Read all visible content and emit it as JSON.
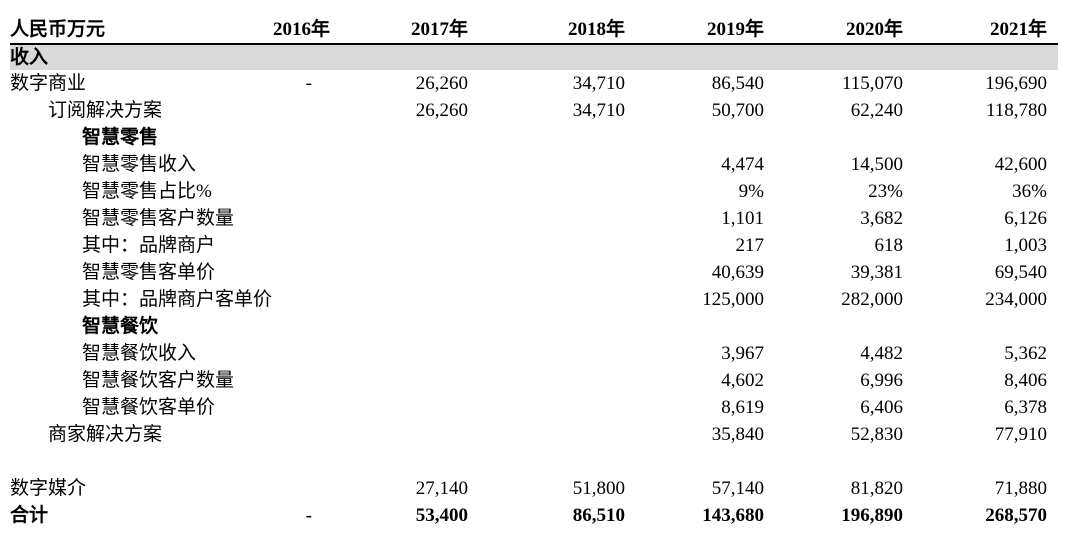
{
  "table": {
    "unit_label": "人民币万元",
    "columns": [
      "2016年",
      "2017年",
      "2018年",
      "2019年",
      "2020年",
      "2021年"
    ],
    "section_header": "收入",
    "rows": [
      {
        "label": "数字商业",
        "indent": 0,
        "bold": false,
        "spacer": false,
        "values": [
          "-",
          "26,260",
          "34,710",
          "86,540",
          "115,070",
          "196,690"
        ]
      },
      {
        "label": "订阅解决方案",
        "indent": 1,
        "bold": false,
        "spacer": false,
        "values": [
          "",
          "26,260",
          "34,710",
          "50,700",
          "62,240",
          "118,780"
        ]
      },
      {
        "label": "智慧零售",
        "indent": 2,
        "bold": true,
        "spacer": false,
        "values": [
          "",
          "",
          "",
          "",
          "",
          ""
        ]
      },
      {
        "label": "智慧零售收入",
        "indent": 2,
        "bold": false,
        "spacer": false,
        "values": [
          "",
          "",
          "",
          "4,474",
          "14,500",
          "42,600"
        ]
      },
      {
        "label": "智慧零售占比%",
        "indent": 2,
        "bold": false,
        "spacer": false,
        "values": [
          "",
          "",
          "",
          "9%",
          "23%",
          "36%"
        ]
      },
      {
        "label": "智慧零售客户数量",
        "indent": 2,
        "bold": false,
        "spacer": false,
        "values": [
          "",
          "",
          "",
          "1,101",
          "3,682",
          "6,126"
        ]
      },
      {
        "label": "其中：品牌商户",
        "indent": 2,
        "bold": false,
        "spacer": false,
        "values": [
          "",
          "",
          "",
          "217",
          "618",
          "1,003"
        ]
      },
      {
        "label": "智慧零售客单价",
        "indent": 2,
        "bold": false,
        "spacer": false,
        "values": [
          "",
          "",
          "",
          "40,639",
          "39,381",
          "69,540"
        ]
      },
      {
        "label": "其中：品牌商户客单价",
        "indent": 2,
        "bold": false,
        "spacer": false,
        "values": [
          "",
          "",
          "",
          "125,000",
          "282,000",
          "234,000"
        ]
      },
      {
        "label": "智慧餐饮",
        "indent": 2,
        "bold": true,
        "spacer": false,
        "values": [
          "",
          "",
          "",
          "",
          "",
          ""
        ]
      },
      {
        "label": "智慧餐饮收入",
        "indent": 2,
        "bold": false,
        "spacer": false,
        "values": [
          "",
          "",
          "",
          "3,967",
          "4,482",
          "5,362"
        ]
      },
      {
        "label": "智慧餐饮客户数量",
        "indent": 2,
        "bold": false,
        "spacer": false,
        "values": [
          "",
          "",
          "",
          "4,602",
          "6,996",
          "8,406"
        ]
      },
      {
        "label": "智慧餐饮客单价",
        "indent": 2,
        "bold": false,
        "spacer": false,
        "values": [
          "",
          "",
          "",
          "8,619",
          "6,406",
          "6,378"
        ]
      },
      {
        "label": "商家解决方案",
        "indent": 1,
        "bold": false,
        "spacer": false,
        "values": [
          "",
          "",
          "",
          "35,840",
          "52,830",
          "77,910"
        ]
      },
      {
        "label": "",
        "indent": 0,
        "bold": false,
        "spacer": true,
        "values": [
          "",
          "",
          "",
          "",
          "",
          ""
        ]
      },
      {
        "label": "数字媒介",
        "indent": 0,
        "bold": false,
        "spacer": false,
        "values": [
          "",
          "27,140",
          "51,800",
          "57,140",
          "81,820",
          "71,880"
        ]
      },
      {
        "label": "合计",
        "indent": 0,
        "bold": true,
        "spacer": false,
        "values": [
          "-",
          "53,400",
          "86,510",
          "143,680",
          "196,890",
          "268,570"
        ]
      }
    ]
  },
  "colors": {
    "section_band": "#d9d9d9",
    "rule": "#000000",
    "text": "#000000"
  }
}
